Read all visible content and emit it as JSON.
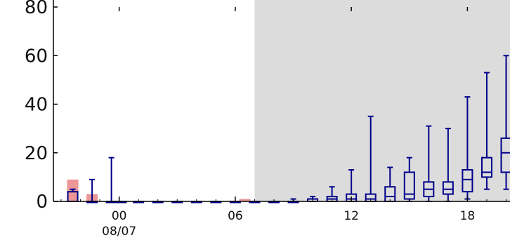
{
  "chart_data": {
    "type": "box",
    "title": "",
    "xlabel": "",
    "ylabel": "",
    "ylim": [
      0,
      80
    ],
    "y_ticks": [
      "0",
      "20",
      "40",
      "60",
      "80"
    ],
    "x_ticks": [
      {
        "hour": 24,
        "label": "00",
        "sublabel": "08/07"
      },
      {
        "hour": 30,
        "label": "06",
        "sublabel": ""
      },
      {
        "hour": 36,
        "label": "12",
        "sublabel": ""
      },
      {
        "hour": 42,
        "label": "18",
        "sublabel": ""
      }
    ],
    "xlim_hours": [
      20.6,
      44.2
    ],
    "night_shading_start_hour": 31.0,
    "colors": {
      "box": "#00008b",
      "red_bar": "#e57373",
      "night_bg": "#dcdcdc",
      "axis": "#000000"
    },
    "red_bars": [
      {
        "hour": 21.6,
        "value": 9
      },
      {
        "hour": 22.6,
        "value": 3
      },
      {
        "hour": 30.5,
        "value": 1
      }
    ],
    "series": [
      {
        "hour": 21.6,
        "min": 0,
        "q1": 0,
        "median": 4,
        "q3": 4,
        "max": 5
      },
      {
        "hour": 22.6,
        "min": 0,
        "q1": 0,
        "median": 0,
        "q3": 0,
        "max": 9
      },
      {
        "hour": 23.6,
        "min": 0,
        "q1": 0,
        "median": 0,
        "q3": 0,
        "max": 18
      },
      {
        "hour": 24.1,
        "min": 0,
        "q1": 0,
        "median": 0,
        "q3": 0,
        "max": 0
      },
      {
        "hour": 25.0,
        "min": 0,
        "q1": 0,
        "median": 0,
        "q3": 0,
        "max": 0
      },
      {
        "hour": 26.0,
        "min": 0,
        "q1": 0,
        "median": 0,
        "q3": 0,
        "max": 0
      },
      {
        "hour": 27.0,
        "min": 0,
        "q1": 0,
        "median": 0,
        "q3": 0,
        "max": 0
      },
      {
        "hour": 28.0,
        "min": 0,
        "q1": 0,
        "median": 0,
        "q3": 0,
        "max": 0
      },
      {
        "hour": 29.0,
        "min": 0,
        "q1": 0,
        "median": 0,
        "q3": 0,
        "max": 0
      },
      {
        "hour": 30.0,
        "min": 0,
        "q1": 0,
        "median": 0,
        "q3": 0,
        "max": 0
      },
      {
        "hour": 31.0,
        "min": 0,
        "q1": 0,
        "median": 0,
        "q3": 0,
        "max": 0
      },
      {
        "hour": 32.0,
        "min": 0,
        "q1": 0,
        "median": 0,
        "q3": 0,
        "max": 0
      },
      {
        "hour": 33.0,
        "min": 0,
        "q1": 0,
        "median": 0,
        "q3": 0,
        "max": 1
      },
      {
        "hour": 34.0,
        "min": 0,
        "q1": 0,
        "median": 0,
        "q3": 1,
        "max": 2
      },
      {
        "hour": 35.0,
        "min": 0,
        "q1": 0,
        "median": 1,
        "q3": 2,
        "max": 6
      },
      {
        "hour": 36.0,
        "min": 0,
        "q1": 0,
        "median": 1,
        "q3": 3,
        "max": 13
      },
      {
        "hour": 37.0,
        "min": 0,
        "q1": 0,
        "median": 1,
        "q3": 3,
        "max": 35
      },
      {
        "hour": 38.0,
        "min": 0,
        "q1": 0,
        "median": 2,
        "q3": 6,
        "max": 14
      },
      {
        "hour": 39.0,
        "min": 0,
        "q1": 1,
        "median": 3,
        "q3": 12,
        "max": 18
      },
      {
        "hour": 40.0,
        "min": 0,
        "q1": 2,
        "median": 5,
        "q3": 8,
        "max": 31
      },
      {
        "hour": 41.0,
        "min": 0,
        "q1": 3,
        "median": 5,
        "q3": 8,
        "max": 30
      },
      {
        "hour": 42.0,
        "min": 1,
        "q1": 4,
        "median": 9,
        "q3": 13,
        "max": 43
      },
      {
        "hour": 43.0,
        "min": 5,
        "q1": 10,
        "median": 12,
        "q3": 18,
        "max": 53
      },
      {
        "hour": 44.0,
        "min": 5,
        "q1": 12,
        "median": 20,
        "q3": 26,
        "max": 60
      }
    ]
  }
}
